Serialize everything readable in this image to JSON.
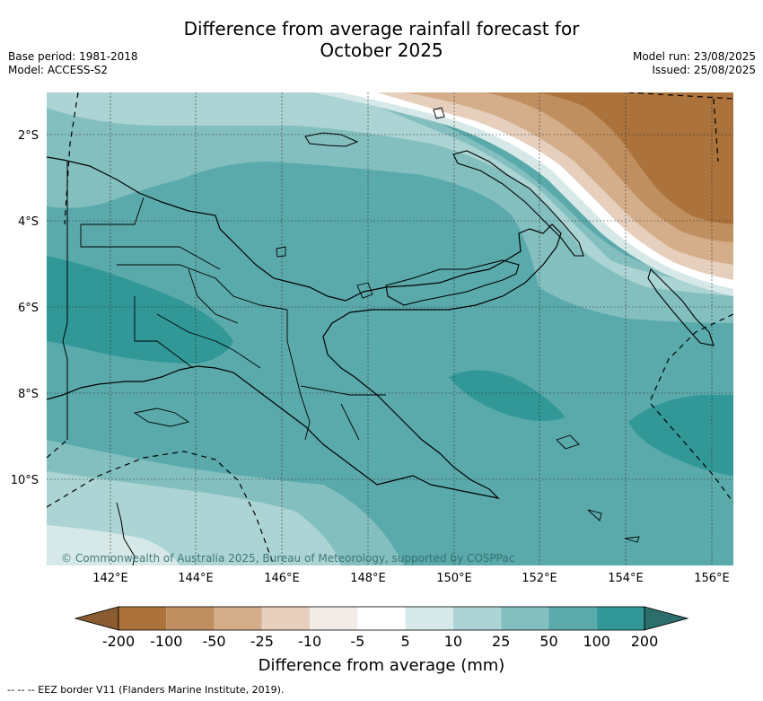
{
  "title": {
    "line1": "Difference from average rainfall forecast for",
    "line2": "October 2025"
  },
  "meta": {
    "base_period": "Base period: 1981-2018",
    "model": "Model: ACCESS-S2",
    "model_run": "Model run: 23/08/2025",
    "issued": "Issued: 25/08/2025"
  },
  "map": {
    "region": "Papua New Guinea",
    "lon_ticks": [
      "142°E",
      "144°E",
      "146°E",
      "148°E",
      "150°E",
      "152°E",
      "154°E",
      "156°E"
    ],
    "lat_ticks": [
      "2°S",
      "4°S",
      "6°S",
      "8°S",
      "10°S"
    ],
    "gridlines": true,
    "copyright": "© Commonwealth of Australia 2025, Bureau of Meteorology, supported by COSPPac"
  },
  "colorbar": {
    "title": "Difference from average (mm)",
    "labels": [
      "-200",
      "-100",
      "-50",
      "-25",
      "-10",
      "-5",
      "5",
      "10",
      "25",
      "50",
      "100",
      "200"
    ],
    "colors": {
      "lt_neg200": "#8a5a30",
      "neg200_neg100": "#ab723b",
      "neg100_neg50": "#c08f5f",
      "neg50_neg25": "#d4ae8b",
      "neg25_neg10": "#e6d0bd",
      "neg10_neg5": "#f2ece7",
      "neg5_5": "#ffffff",
      "5_10": "#d6e8e8",
      "10_25": "#acd4d4",
      "25_50": "#84bfc0",
      "50_100": "#5aaaab",
      "100_200": "#319797",
      "gt_200": "#2c6e6c"
    }
  },
  "footnote": "-- -- -- EEZ border V11 (Flanders Marine Institute, 2019)."
}
